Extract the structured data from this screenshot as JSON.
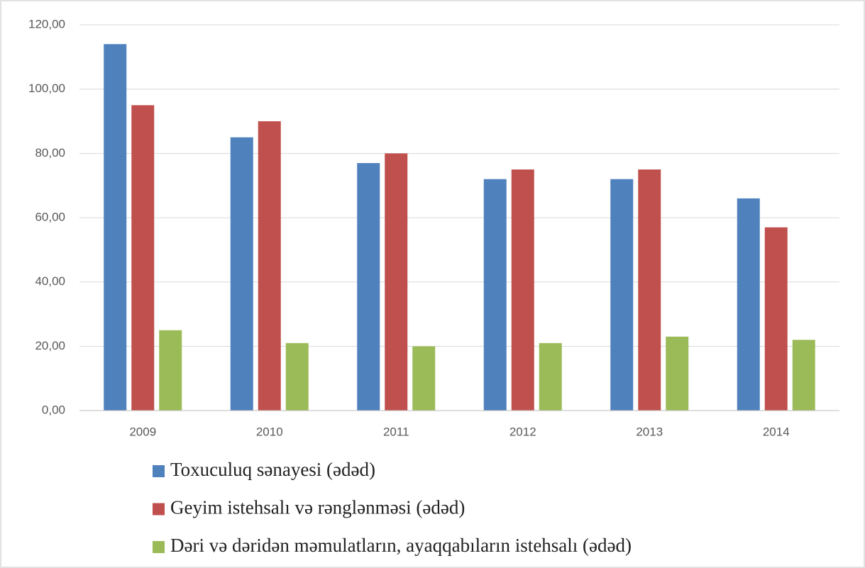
{
  "chart_data": {
    "type": "bar",
    "categories": [
      "2009",
      "2010",
      "2011",
      "2012",
      "2013",
      "2014"
    ],
    "series": [
      {
        "name": "Toxuculuq sənayesi (ədəd)",
        "color": "#4f81bd",
        "values": [
          114,
          85,
          77,
          72,
          72,
          66
        ]
      },
      {
        "name": "Geyim istehsalı və rənglənməsi (ədəd)",
        "color": "#c0504d",
        "values": [
          95,
          90,
          80,
          75,
          75,
          57
        ]
      },
      {
        "name": "Dəri və dəridən məmulatların, ayaqqabıların istehsalı (ədəd)",
        "color": "#9bbb59",
        "values": [
          25,
          21,
          20,
          21,
          23,
          22
        ]
      }
    ],
    "ylim": [
      0,
      120
    ],
    "yticks": [
      {
        "value": 0,
        "label": "0,00"
      },
      {
        "value": 20,
        "label": "20,00"
      },
      {
        "value": 40,
        "label": "40,00"
      },
      {
        "value": 60,
        "label": "60,00"
      },
      {
        "value": 80,
        "label": "80,00"
      },
      {
        "value": 100,
        "label": "100,00"
      },
      {
        "value": 120,
        "label": "120,00"
      }
    ],
    "grid": true,
    "legend": "bottom"
  }
}
